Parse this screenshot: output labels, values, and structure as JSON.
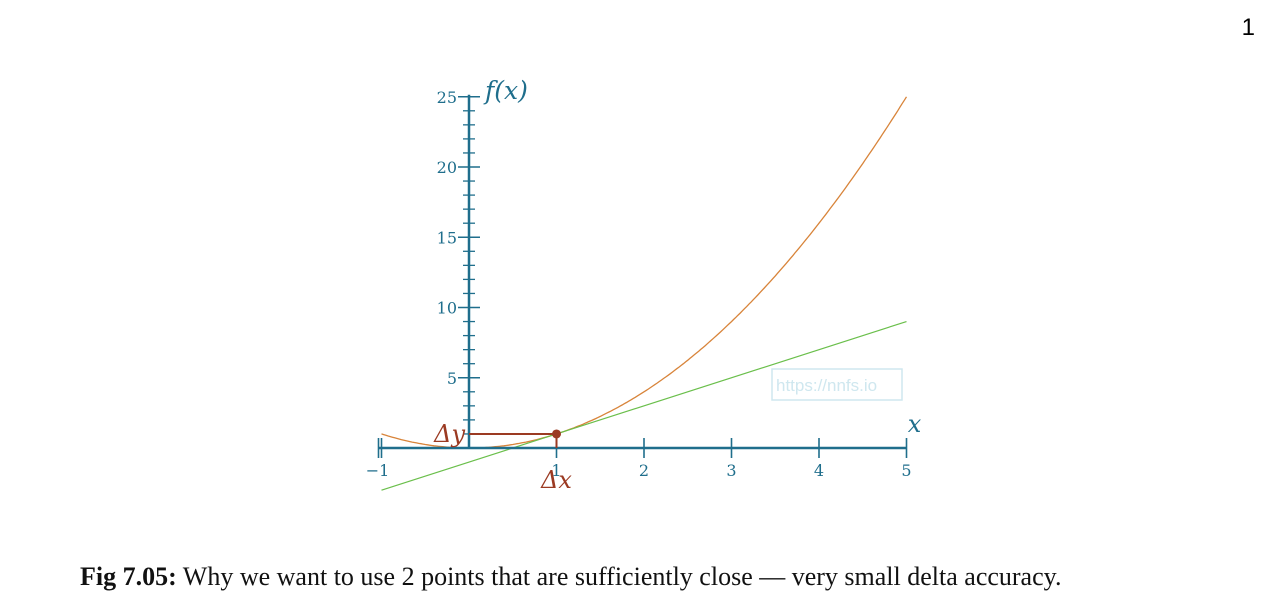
{
  "page_number": "1",
  "watermark": "https://nnfs.io",
  "caption": {
    "label": "Fig 7.05:",
    "text": "Why we want to use 2 points that are sufficiently close — very small delta accuracy."
  },
  "colors": {
    "axis": "#1f6e8c",
    "curve": "#d8843a",
    "tangent": "#6abf4b",
    "delta": "#9b3a22",
    "watermark": "#cfe7ef"
  },
  "chart_data": {
    "type": "line",
    "xlabel": "x",
    "ylabel": "f(x)",
    "xlim": [
      -1,
      5
    ],
    "ylim": [
      0,
      25
    ],
    "x_ticks": [
      "−1",
      "1",
      "2",
      "3",
      "4",
      "5"
    ],
    "y_ticks": [
      "5",
      "10",
      "15",
      "20",
      "25"
    ],
    "series": [
      {
        "kind": "curve",
        "function": "x^2",
        "x_range": [
          -1,
          5
        ]
      },
      {
        "kind": "tangent",
        "slope": 2,
        "intercept": -1,
        "x_range": [
          -1,
          5
        ]
      }
    ],
    "point": {
      "x": 1,
      "y": 1
    },
    "annotations": {
      "delta_x": "Δx",
      "delta_y": "Δy"
    }
  }
}
